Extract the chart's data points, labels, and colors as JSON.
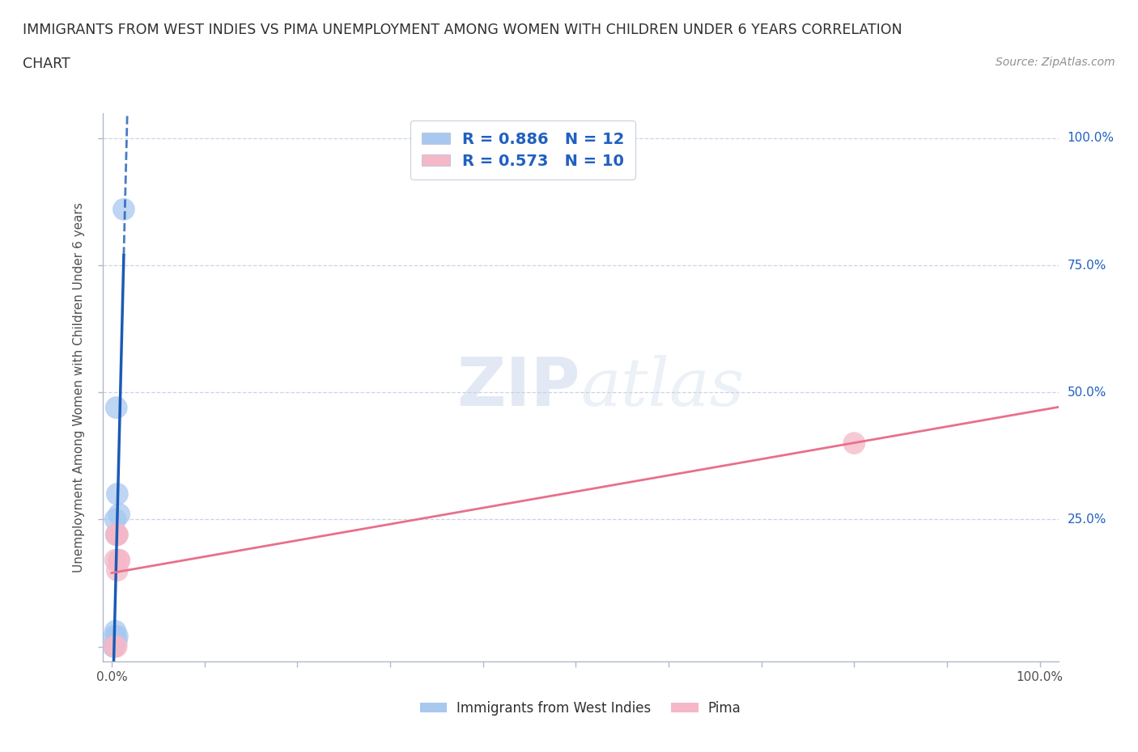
{
  "title_line1": "IMMIGRANTS FROM WEST INDIES VS PIMA UNEMPLOYMENT AMONG WOMEN WITH CHILDREN UNDER 6 YEARS CORRELATION",
  "title_line2": "CHART",
  "source_text": "Source: ZipAtlas.com",
  "ylabel": "Unemployment Among Women with Children Under 6 years",
  "blue_points_x": [
    0.002,
    0.003,
    0.003,
    0.004,
    0.004,
    0.005,
    0.005,
    0.005,
    0.006,
    0.006,
    0.008,
    0.013
  ],
  "blue_points_y": [
    0.0,
    0.0,
    0.02,
    0.03,
    0.25,
    0.01,
    0.22,
    0.47,
    0.02,
    0.3,
    0.26,
    0.86
  ],
  "pink_points_x": [
    0.003,
    0.004,
    0.005,
    0.005,
    0.006,
    0.006,
    0.006,
    0.008,
    0.008,
    0.8
  ],
  "pink_points_y": [
    0.0,
    0.17,
    0.0,
    0.22,
    0.15,
    0.22,
    0.22,
    0.17,
    0.17,
    0.4
  ],
  "blue_R": 0.886,
  "blue_N": 12,
  "pink_R": 0.573,
  "pink_N": 10,
  "blue_color": "#a8c8f0",
  "pink_color": "#f5b8c8",
  "blue_line_color": "#1a5bb5",
  "pink_line_color": "#e8708a",
  "watermark_color": "#d0dcf0",
  "background_color": "#ffffff",
  "grid_color": "#c8d4e8",
  "title_color": "#303030",
  "legend_text_color": "#2060c0",
  "axis_label_color": "#505050",
  "right_tick_color": "#2060c0"
}
